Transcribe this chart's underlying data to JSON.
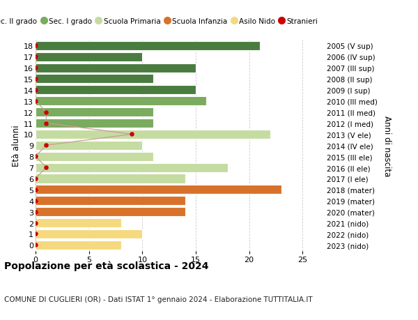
{
  "ages": [
    18,
    17,
    16,
    15,
    14,
    13,
    12,
    11,
    10,
    9,
    8,
    7,
    6,
    5,
    4,
    3,
    2,
    1,
    0
  ],
  "right_labels": [
    "2005 (V sup)",
    "2006 (IV sup)",
    "2007 (III sup)",
    "2008 (II sup)",
    "2009 (I sup)",
    "2010 (III med)",
    "2011 (II med)",
    "2012 (I med)",
    "2013 (V ele)",
    "2014 (IV ele)",
    "2015 (III ele)",
    "2016 (II ele)",
    "2017 (I ele)",
    "2018 (mater)",
    "2019 (mater)",
    "2020 (mater)",
    "2021 (nido)",
    "2022 (nido)",
    "2023 (nido)"
  ],
  "bar_values": [
    21,
    10,
    15,
    11,
    15,
    16,
    11,
    11,
    22,
    10,
    11,
    18,
    14,
    23,
    14,
    14,
    8,
    10,
    8
  ],
  "bar_colors": [
    "#4a7c40",
    "#4a7c40",
    "#4a7c40",
    "#4a7c40",
    "#4a7c40",
    "#7aab5e",
    "#7aab5e",
    "#7aab5e",
    "#c5dca0",
    "#c5dca0",
    "#c5dca0",
    "#c5dca0",
    "#c5dca0",
    "#d8722a",
    "#d8722a",
    "#d8722a",
    "#f5d97e",
    "#f5d97e",
    "#f5d97e"
  ],
  "stranieri_x": [
    0,
    0,
    0,
    0,
    0,
    0,
    1,
    1,
    9,
    1,
    0,
    1,
    0,
    0,
    0,
    0,
    0,
    0,
    0
  ],
  "legend_labels": [
    "Sec. II grado",
    "Sec. I grado",
    "Scuola Primaria",
    "Scuola Infanzia",
    "Asilo Nido",
    "Stranieri"
  ],
  "legend_colors": [
    "#4a7c40",
    "#7aab5e",
    "#c5dca0",
    "#d8722a",
    "#f5d97e",
    "#cc0000"
  ],
  "ylabel_left": "Età alunni",
  "ylabel_right": "Anni di nascita",
  "title": "Popolazione per età scolastica - 2024",
  "subtitle": "COMUNE DI CUGLIERI (OR) - Dati ISTAT 1° gennaio 2024 - Elaborazione TUTTITALIA.IT",
  "xlim": [
    0,
    27
  ],
  "ylim": [
    -0.55,
    18.55
  ],
  "xticks": [
    0,
    5,
    10,
    15,
    20,
    25
  ],
  "background_color": "#ffffff",
  "grid_color": "#cccccc",
  "bar_height": 0.82,
  "stranieri_color": "#cc0000",
  "stranieri_line_color": "#cc9999"
}
